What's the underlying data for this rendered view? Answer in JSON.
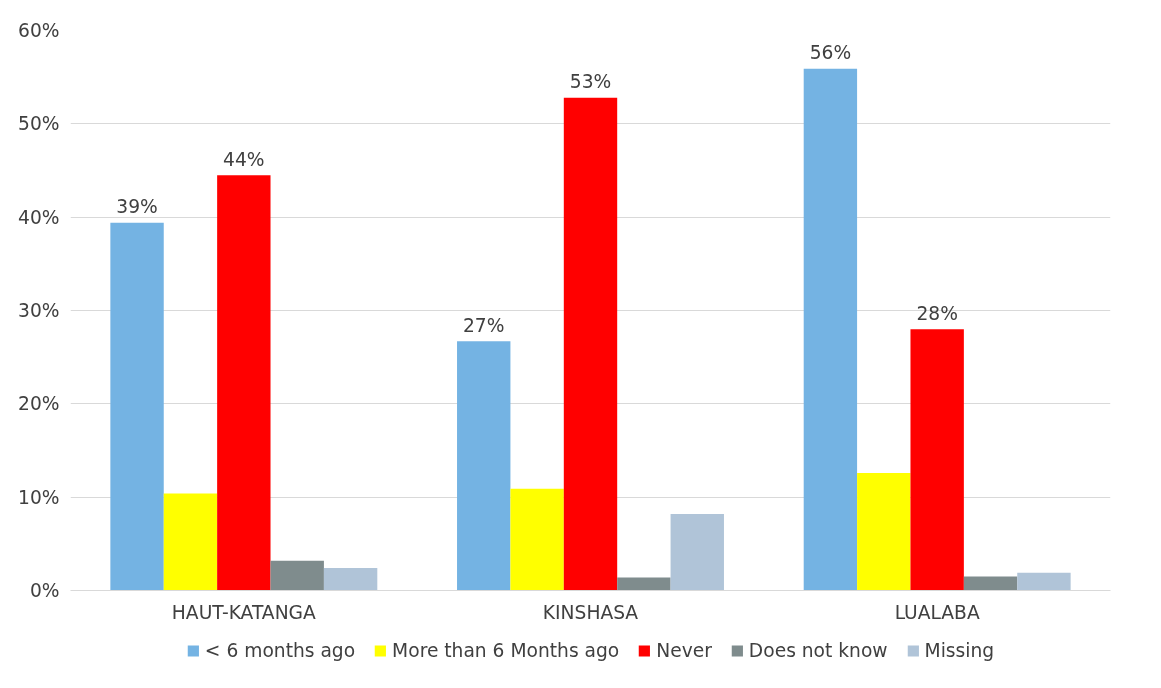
{
  "chart_data": {
    "type": "bar",
    "categories": [
      "HAUT-KATANGA",
      "KINSHASA",
      "LUALABA"
    ],
    "series": [
      {
        "name": "< 6 months ago",
        "color": "#74b3e3",
        "values": [
          39.4,
          26.7,
          55.9
        ],
        "value_labels": [
          "39%",
          "27%",
          "56%"
        ]
      },
      {
        "name": "More than 6 Months ago",
        "color": "#ffff00",
        "values": [
          10.4,
          10.9,
          12.6
        ]
      },
      {
        "name": "Never",
        "color": "#ff0000",
        "values": [
          44.5,
          52.8,
          28.0
        ],
        "value_labels": [
          "44%",
          "53%",
          "28%"
        ]
      },
      {
        "name": "Does not know",
        "color": "#7f8c8d",
        "values": [
          3.2,
          1.4,
          1.5
        ]
      },
      {
        "name": "Missing",
        "color": "#b0c4d8",
        "values": [
          2.4,
          8.2,
          1.9
        ]
      }
    ],
    "ylim": [
      0,
      60
    ],
    "yticks": [
      {
        "value": 0,
        "label": "0%"
      },
      {
        "value": 10,
        "label": "10%"
      },
      {
        "value": 20,
        "label": "20%"
      },
      {
        "value": 30,
        "label": "30%"
      },
      {
        "value": 40,
        "label": "40%"
      },
      {
        "value": 50,
        "label": "50%"
      },
      {
        "value": 60,
        "label": "60%"
      }
    ],
    "grid": "y",
    "legend": "bottom"
  }
}
